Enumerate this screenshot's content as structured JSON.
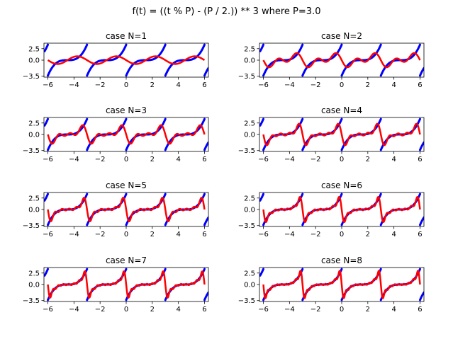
{
  "suptitle": "f(t) = ((t % P) - (P / 2.)) ** 3 where P=3.0",
  "chart_data": {
    "type": "line",
    "P": 3.0,
    "function": "((t % P) - (P / 2.)) ** 3",
    "xlim": [
      -6.3,
      6.3
    ],
    "ylim": [
      -3.7,
      3.7
    ],
    "xticks": [
      -6,
      -4,
      -2,
      0,
      2,
      4,
      6
    ],
    "yticks": [
      -3.5,
      0.0,
      2.5
    ],
    "ytick_labels": [
      "−3.5",
      "0.0",
      "2.5"
    ],
    "xtick_labels": [
      "−6",
      "−4",
      "−2",
      "0",
      "2",
      "4",
      "6"
    ],
    "colors": {
      "target": "#0000ff",
      "approximation": "#ff0000"
    },
    "subplots": [
      {
        "title": "case N=1",
        "N": 1
      },
      {
        "title": "case N=2",
        "N": 2
      },
      {
        "title": "case N=3",
        "N": 3
      },
      {
        "title": "case N=4",
        "N": 4
      },
      {
        "title": "case N=5",
        "N": 5
      },
      {
        "title": "case N=6",
        "N": 6
      },
      {
        "title": "case N=7",
        "N": 7
      },
      {
        "title": "case N=8",
        "N": 8
      }
    ]
  }
}
